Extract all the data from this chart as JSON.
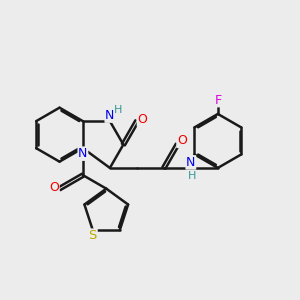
{
  "background_color": "#ececec",
  "bond_color": "#1a1a1a",
  "bond_width": 1.8,
  "atom_colors": {
    "N": "#0000ee",
    "O": "#ee0000",
    "S": "#bbaa00",
    "F": "#dd00dd",
    "H": "#339999",
    "C": "#1a1a1a"
  },
  "figsize": [
    3.0,
    3.0
  ],
  "dpi": 100
}
